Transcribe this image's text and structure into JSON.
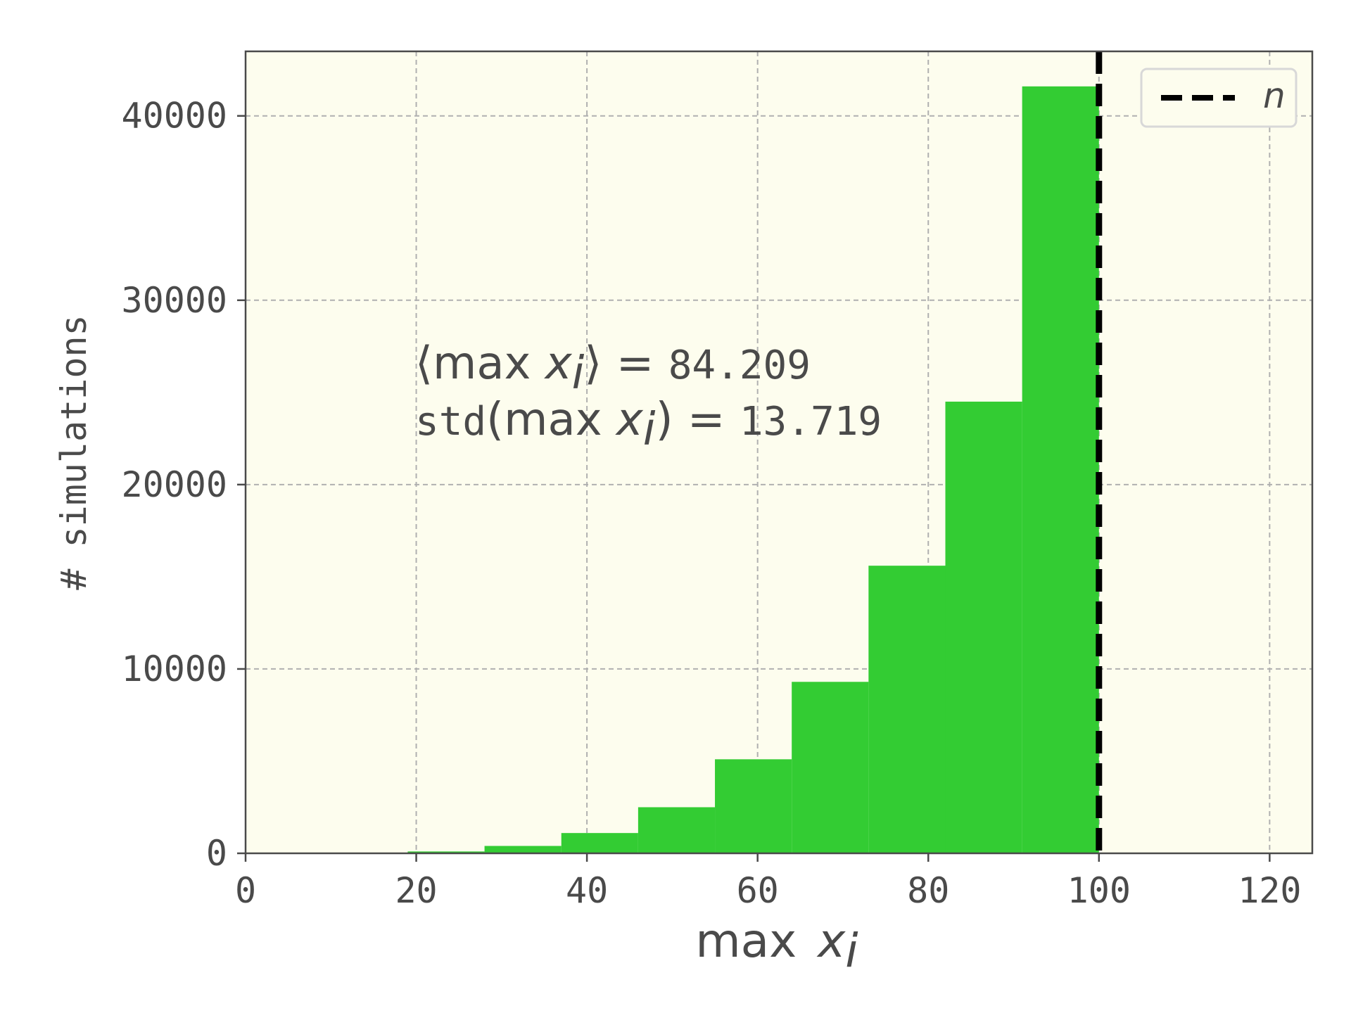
{
  "chart_data": {
    "type": "bar",
    "title": "",
    "xlabel": "max",
    "xlabel_var": "x",
    "xlabel_sub": "i",
    "ylabel": "# simulations",
    "xlim": [
      0,
      125
    ],
    "ylim": [
      0,
      43500
    ],
    "xticks": [
      0,
      20,
      40,
      60,
      80,
      100,
      120
    ],
    "yticks": [
      0,
      10000,
      20000,
      30000,
      40000
    ],
    "grid": true,
    "bar_color": "#33cc33",
    "background_color": "#fdfdee",
    "bins": [
      {
        "x0": 19,
        "x1": 28,
        "value": 100
      },
      {
        "x0": 28,
        "x1": 37,
        "value": 400
      },
      {
        "x0": 37,
        "x1": 46,
        "value": 1100
      },
      {
        "x0": 46,
        "x1": 55,
        "value": 2500
      },
      {
        "x0": 55,
        "x1": 64,
        "value": 5100
      },
      {
        "x0": 64,
        "x1": 73,
        "value": 9300
      },
      {
        "x0": 73,
        "x1": 82,
        "value": 15600
      },
      {
        "x0": 82,
        "x1": 91,
        "value": 24500
      },
      {
        "x0": 91,
        "x1": 100,
        "value": 41600
      }
    ],
    "vline": {
      "x": 100,
      "style": "dashed",
      "color": "#000000",
      "legend": "n"
    },
    "legend_placement": "top-right",
    "annotations": {
      "line1_prefix": "⟨max ",
      "line1_var": "x",
      "line1_sub": "i",
      "line1_suffix": "⟩ = ",
      "line1_value": "84.209",
      "line2_prefix": "std(max ",
      "line2_var": "x",
      "line2_sub": "i",
      "line2_suffix": ") = ",
      "line2_value": "13.719"
    }
  }
}
